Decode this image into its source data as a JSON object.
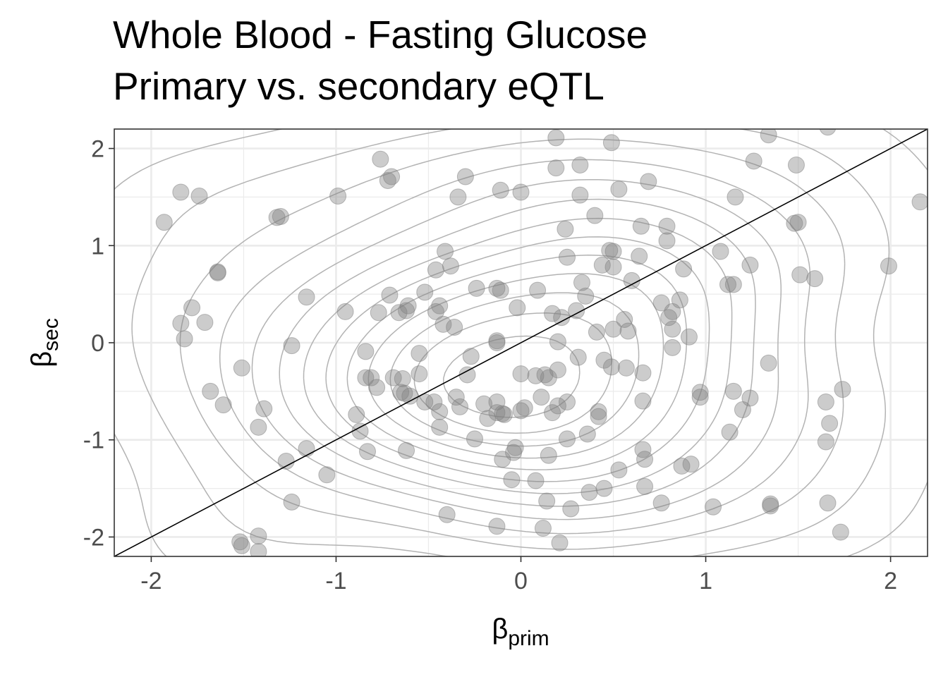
{
  "chart_data": {
    "type": "scatter",
    "title": "Whole Blood - Fasting Glucose",
    "subtitle": "Primary vs. secondary eQTL",
    "xlabel_symbol": "β",
    "xlabel_sub": "prim",
    "ylabel_symbol": "β",
    "ylabel_sub": "sec",
    "xlim": [
      -2.2,
      2.2
    ],
    "ylim": [
      -2.2,
      2.2
    ],
    "xticks": [
      -2,
      -1,
      0,
      1,
      2
    ],
    "yticks": [
      -2,
      -1,
      0,
      1,
      2
    ],
    "xtick_labels": [
      "-2",
      "-1",
      "0",
      "1",
      "2"
    ],
    "ytick_labels": [
      "-2",
      "-1",
      "0",
      "1",
      "2"
    ],
    "grid": true,
    "reference_line": {
      "slope": 1,
      "intercept": 0
    },
    "density_contours": true,
    "colors": {
      "points": "#808080",
      "contours": "#b3b3b3",
      "reference_line": "#000000",
      "grid": "#ebebeb",
      "panel_border": "#333333"
    },
    "points": [
      {
        "x": -1.93,
        "y": 1.24
      },
      {
        "x": -1.84,
        "y": 1.55
      },
      {
        "x": -1.74,
        "y": 1.51
      },
      {
        "x": -1.64,
        "y": 0.73
      },
      {
        "x": -1.64,
        "y": 0.72
      },
      {
        "x": -1.78,
        "y": 0.36
      },
      {
        "x": -1.84,
        "y": 0.2
      },
      {
        "x": -1.82,
        "y": 0.04
      },
      {
        "x": -1.71,
        "y": 0.21
      },
      {
        "x": -1.68,
        "y": -0.5
      },
      {
        "x": -1.61,
        "y": -0.64
      },
      {
        "x": -1.51,
        "y": -0.26
      },
      {
        "x": -1.32,
        "y": 1.29
      },
      {
        "x": -1.3,
        "y": 1.3
      },
      {
        "x": -1.16,
        "y": 0.47
      },
      {
        "x": -1.24,
        "y": -0.03
      },
      {
        "x": -1.39,
        "y": -0.68
      },
      {
        "x": -1.42,
        "y": -0.87
      },
      {
        "x": -1.27,
        "y": -1.22
      },
      {
        "x": -1.16,
        "y": -1.09
      },
      {
        "x": -1.05,
        "y": -1.36
      },
      {
        "x": -1.24,
        "y": -1.64
      },
      {
        "x": -1.52,
        "y": -2.05
      },
      {
        "x": -1.51,
        "y": -2.09
      },
      {
        "x": -1.42,
        "y": -1.99
      },
      {
        "x": -1.42,
        "y": -2.15
      },
      {
        "x": -0.99,
        "y": 1.51
      },
      {
        "x": -0.76,
        "y": 1.89
      },
      {
        "x": -0.72,
        "y": 1.67
      },
      {
        "x": -0.7,
        "y": 1.71
      },
      {
        "x": -0.3,
        "y": 1.71
      },
      {
        "x": -0.34,
        "y": 1.5
      },
      {
        "x": -0.95,
        "y": 0.32
      },
      {
        "x": -0.71,
        "y": 0.49
      },
      {
        "x": -0.77,
        "y": 0.31
      },
      {
        "x": -0.66,
        "y": 0.31
      },
      {
        "x": -0.61,
        "y": 0.38
      },
      {
        "x": -0.62,
        "y": 0.33
      },
      {
        "x": -0.52,
        "y": 0.52
      },
      {
        "x": -0.46,
        "y": 0.75
      },
      {
        "x": -0.41,
        "y": 0.94
      },
      {
        "x": -0.38,
        "y": 0.79
      },
      {
        "x": -0.46,
        "y": 0.32
      },
      {
        "x": -0.44,
        "y": 0.38
      },
      {
        "x": -0.42,
        "y": 0.19
      },
      {
        "x": -0.36,
        "y": 0.16
      },
      {
        "x": -0.24,
        "y": 0.56
      },
      {
        "x": -0.13,
        "y": 0.56
      },
      {
        "x": -0.11,
        "y": 0.54
      },
      {
        "x": -0.13,
        "y": 0.02
      },
      {
        "x": -0.13,
        "y": 0.0
      },
      {
        "x": -0.02,
        "y": 0.36
      },
      {
        "x": -0.84,
        "y": -0.09
      },
      {
        "x": -0.84,
        "y": -0.36
      },
      {
        "x": -0.81,
        "y": -0.36
      },
      {
        "x": -0.78,
        "y": -0.46
      },
      {
        "x": -0.69,
        "y": -0.36
      },
      {
        "x": -0.64,
        "y": -0.37
      },
      {
        "x": -0.65,
        "y": -0.51
      },
      {
        "x": -0.63,
        "y": -0.52
      },
      {
        "x": -0.6,
        "y": -0.55
      },
      {
        "x": -0.55,
        "y": -0.32
      },
      {
        "x": -0.55,
        "y": -0.11
      },
      {
        "x": -0.52,
        "y": -0.61
      },
      {
        "x": -0.47,
        "y": -0.61
      },
      {
        "x": -0.44,
        "y": -0.71
      },
      {
        "x": -0.44,
        "y": -0.87
      },
      {
        "x": -0.33,
        "y": -0.66
      },
      {
        "x": -0.35,
        "y": -0.56
      },
      {
        "x": -0.27,
        "y": -0.14
      },
      {
        "x": -0.29,
        "y": -0.33
      },
      {
        "x": -0.2,
        "y": -0.63
      },
      {
        "x": -0.18,
        "y": -0.78
      },
      {
        "x": -0.13,
        "y": -0.72
      },
      {
        "x": -0.13,
        "y": -0.61
      },
      {
        "x": -0.1,
        "y": -0.73
      },
      {
        "x": -0.09,
        "y": -0.74
      },
      {
        "x": -0.04,
        "y": -1.13
      },
      {
        "x": -0.1,
        "y": -1.2
      },
      {
        "x": -0.03,
        "y": -1.08
      },
      {
        "x": -0.05,
        "y": -1.41
      },
      {
        "x": -0.25,
        "y": -0.99
      },
      {
        "x": -0.89,
        "y": -0.74
      },
      {
        "x": -0.87,
        "y": -0.91
      },
      {
        "x": -0.83,
        "y": -1.12
      },
      {
        "x": -0.62,
        "y": -1.11
      },
      {
        "x": -0.4,
        "y": -1.77
      },
      {
        "x": -0.13,
        "y": -1.89
      },
      {
        "x": 0.0,
        "y": -0.32
      },
      {
        "x": 0.08,
        "y": -0.34
      },
      {
        "x": 0.13,
        "y": -0.33
      },
      {
        "x": 0.15,
        "y": -0.36
      },
      {
        "x": 0.2,
        "y": -0.28
      },
      {
        "x": 0.2,
        "y": 0.01
      },
      {
        "x": 0.17,
        "y": 0.3
      },
      {
        "x": 0.22,
        "y": 0.26
      },
      {
        "x": 0.3,
        "y": 0.33
      },
      {
        "x": 0.02,
        "y": -0.67
      },
      {
        "x": 0.0,
        "y": -0.7
      },
      {
        "x": 0.11,
        "y": -0.56
      },
      {
        "x": 0.17,
        "y": -0.72
      },
      {
        "x": 0.2,
        "y": -0.65
      },
      {
        "x": 0.25,
        "y": -0.61
      },
      {
        "x": 0.31,
        "y": -0.15
      },
      {
        "x": 0.35,
        "y": 0.48
      },
      {
        "x": 0.33,
        "y": 0.62
      },
      {
        "x": 0.25,
        "y": 0.88
      },
      {
        "x": 0.09,
        "y": 0.54
      },
      {
        "x": 0.25,
        "y": -0.99
      },
      {
        "x": 0.15,
        "y": -1.16
      },
      {
        "x": 0.08,
        "y": -1.42
      },
      {
        "x": 0.14,
        "y": -1.63
      },
      {
        "x": 0.27,
        "y": -1.71
      },
      {
        "x": 0.12,
        "y": -1.91
      },
      {
        "x": 0.21,
        "y": -2.06
      },
      {
        "x": 0.36,
        "y": -0.94
      },
      {
        "x": 0.42,
        "y": -0.71
      },
      {
        "x": 0.42,
        "y": -0.76
      },
      {
        "x": 0.37,
        "y": -1.54
      },
      {
        "x": 0.45,
        "y": -1.5
      },
      {
        "x": 0.53,
        "y": -1.31
      },
      {
        "x": 0.66,
        "y": -1.1
      },
      {
        "x": 0.67,
        "y": -1.2
      },
      {
        "x": 0.67,
        "y": -1.48
      },
      {
        "x": 0.76,
        "y": -1.65
      },
      {
        "x": 0.87,
        "y": -1.27
      },
      {
        "x": 0.92,
        "y": -1.25
      },
      {
        "x": 0.41,
        "y": 0.11
      },
      {
        "x": 0.45,
        "y": -0.18
      },
      {
        "x": 0.49,
        "y": -0.25
      },
      {
        "x": 0.5,
        "y": 0.14
      },
      {
        "x": 0.56,
        "y": 0.24
      },
      {
        "x": 0.58,
        "y": 0.12
      },
      {
        "x": 0.57,
        "y": -0.26
      },
      {
        "x": 0.66,
        "y": -0.31
      },
      {
        "x": 0.66,
        "y": -0.6
      },
      {
        "x": 0.44,
        "y": 0.8
      },
      {
        "x": 0.48,
        "y": 0.95
      },
      {
        "x": 0.5,
        "y": 0.94
      },
      {
        "x": 0.5,
        "y": 0.78
      },
      {
        "x": 0.6,
        "y": 0.64
      },
      {
        "x": 0.64,
        "y": 0.89
      },
      {
        "x": 0.4,
        "y": 1.31
      },
      {
        "x": 0.53,
        "y": 1.58
      },
      {
        "x": 0.65,
        "y": 1.2
      },
      {
        "x": 0.69,
        "y": 1.66
      },
      {
        "x": 0.32,
        "y": 1.83
      },
      {
        "x": 0.32,
        "y": 1.52
      },
      {
        "x": 0.19,
        "y": 1.8
      },
      {
        "x": 0.24,
        "y": 1.17
      },
      {
        "x": 0.19,
        "y": 2.11
      },
      {
        "x": 0.49,
        "y": 2.06
      },
      {
        "x": -0.11,
        "y": 1.57
      },
      {
        "x": 0.0,
        "y": 1.55
      },
      {
        "x": 0.76,
        "y": 0.41
      },
      {
        "x": 0.8,
        "y": 0.26
      },
      {
        "x": 0.82,
        "y": 0.32
      },
      {
        "x": 0.82,
        "y": 0.14
      },
      {
        "x": 0.82,
        "y": -0.05
      },
      {
        "x": 0.86,
        "y": 0.44
      },
      {
        "x": 0.88,
        "y": 0.76
      },
      {
        "x": 0.79,
        "y": 1.05
      },
      {
        "x": 0.79,
        "y": 1.2
      },
      {
        "x": 0.91,
        "y": 0.06
      },
      {
        "x": 0.97,
        "y": -0.51
      },
      {
        "x": 0.97,
        "y": -0.56
      },
      {
        "x": 1.08,
        "y": 0.94
      },
      {
        "x": 1.12,
        "y": 0.6
      },
      {
        "x": 1.15,
        "y": 0.6
      },
      {
        "x": 1.24,
        "y": 0.8
      },
      {
        "x": 1.04,
        "y": -1.69
      },
      {
        "x": 1.13,
        "y": -0.92
      },
      {
        "x": 1.15,
        "y": -0.5
      },
      {
        "x": 1.2,
        "y": -0.69
      },
      {
        "x": 1.24,
        "y": -0.57
      },
      {
        "x": 1.34,
        "y": -0.21
      },
      {
        "x": 1.35,
        "y": -1.66
      },
      {
        "x": 1.35,
        "y": -1.68
      },
      {
        "x": 1.16,
        "y": 1.5
      },
      {
        "x": 1.26,
        "y": 1.87
      },
      {
        "x": 1.34,
        "y": 2.14
      },
      {
        "x": 1.49,
        "y": 1.83
      },
      {
        "x": 1.48,
        "y": 1.23
      },
      {
        "x": 1.5,
        "y": 1.24
      },
      {
        "x": 1.51,
        "y": 0.7
      },
      {
        "x": 1.59,
        "y": 0.66
      },
      {
        "x": 1.66,
        "y": 2.22
      },
      {
        "x": 1.65,
        "y": -0.61
      },
      {
        "x": 1.67,
        "y": -0.83
      },
      {
        "x": 1.65,
        "y": -1.02
      },
      {
        "x": 1.66,
        "y": -1.65
      },
      {
        "x": 1.73,
        "y": -1.95
      },
      {
        "x": 1.74,
        "y": -0.48
      },
      {
        "x": 1.99,
        "y": 0.79
      },
      {
        "x": 2.16,
        "y": 1.45
      }
    ]
  }
}
